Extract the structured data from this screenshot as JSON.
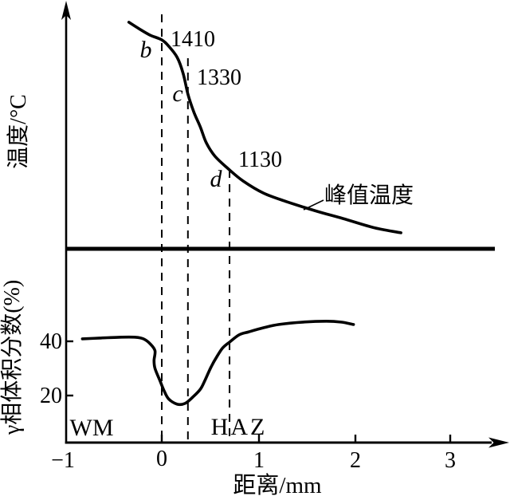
{
  "figure": {
    "background": "#ffffff",
    "ink": "#000000"
  },
  "chart_data": [
    {
      "type": "line",
      "panel": "top",
      "ylabel": "温度/°C",
      "xlim": [
        -1,
        3.55
      ],
      "grid": false,
      "series": [
        {
          "name": "峰值温度",
          "x_unit": "mm",
          "y_unit": "°C",
          "points": [
            [
              -0.34,
              1436
            ],
            [
              -0.23,
              1426
            ],
            [
              -0.12,
              1417
            ],
            [
              0,
              1410
            ],
            [
              0.07,
              1401
            ],
            [
              0.16,
              1384
            ],
            [
              0.22,
              1361
            ],
            [
              0.27,
              1330
            ],
            [
              0.33,
              1283
            ],
            [
              0.4,
              1241
            ],
            [
              0.46,
              1200
            ],
            [
              0.55,
              1164
            ],
            [
              0.69,
              1130
            ],
            [
              0.84,
              1098
            ],
            [
              1.05,
              1066
            ],
            [
              1.29,
              1043
            ],
            [
              1.58,
              1019
            ],
            [
              1.87,
              998
            ],
            [
              2.2,
              973
            ],
            [
              2.47,
              960
            ]
          ]
        }
      ],
      "annotations": {
        "b": {
          "label": "b",
          "temp": "1410",
          "x_mm": 0
        },
        "c": {
          "label": "c",
          "temp": "1330",
          "x_mm": 0.27
        },
        "d": {
          "label": "d",
          "temp": "1130",
          "x_mm": 0.7
        },
        "curve_label": "峰值温度"
      },
      "guides_x_mm": [
        0,
        0.27,
        0.7
      ]
    },
    {
      "type": "line",
      "panel": "bottom",
      "ylabel": "γ相体积分数(%)",
      "xlabel": "距离/mm",
      "xlim": [
        -1,
        3.55
      ],
      "ylim_shown": [
        20,
        40
      ],
      "grid": false,
      "xticks": [
        {
          "label": "−1",
          "value": -1
        },
        {
          "label": "0",
          "value": 0
        },
        {
          "label": "1",
          "value": 1
        },
        {
          "label": "2",
          "value": 2
        },
        {
          "label": "3",
          "value": 3
        }
      ],
      "yticks": [
        {
          "label": "40",
          "value": 40
        },
        {
          "label": "20",
          "value": 20
        }
      ],
      "regions": [
        {
          "label": "WM"
        },
        {
          "label": "HAZ"
        }
      ],
      "series": [
        {
          "name": "γ相体积分数",
          "x_unit": "mm",
          "y_unit": "%",
          "points": [
            [
              -0.82,
              40.9
            ],
            [
              -0.64,
              41.2
            ],
            [
              -0.44,
              41.5
            ],
            [
              -0.27,
              41.5
            ],
            [
              -0.19,
              40.9
            ],
            [
              -0.12,
              39.1
            ],
            [
              -0.07,
              36.5
            ],
            [
              -0.08,
              32.9
            ],
            [
              -0.07,
              30.0
            ],
            [
              -0.02,
              25.6
            ],
            [
              0.02,
              22.1
            ],
            [
              0.07,
              18.8
            ],
            [
              0.16,
              16.8
            ],
            [
              0.24,
              17.1
            ],
            [
              0.32,
              19.4
            ],
            [
              0.4,
              22.4
            ],
            [
              0.45,
              25.9
            ],
            [
              0.51,
              30.6
            ],
            [
              0.57,
              34.4
            ],
            [
              0.63,
              37.6
            ],
            [
              0.7,
              39.7
            ],
            [
              0.8,
              42.4
            ],
            [
              0.9,
              43.5
            ],
            [
              1.05,
              45.0
            ],
            [
              1.21,
              46.2
            ],
            [
              1.46,
              47.1
            ],
            [
              1.7,
              47.4
            ],
            [
              1.85,
              47.1
            ],
            [
              1.98,
              46.2
            ]
          ]
        }
      ]
    }
  ]
}
